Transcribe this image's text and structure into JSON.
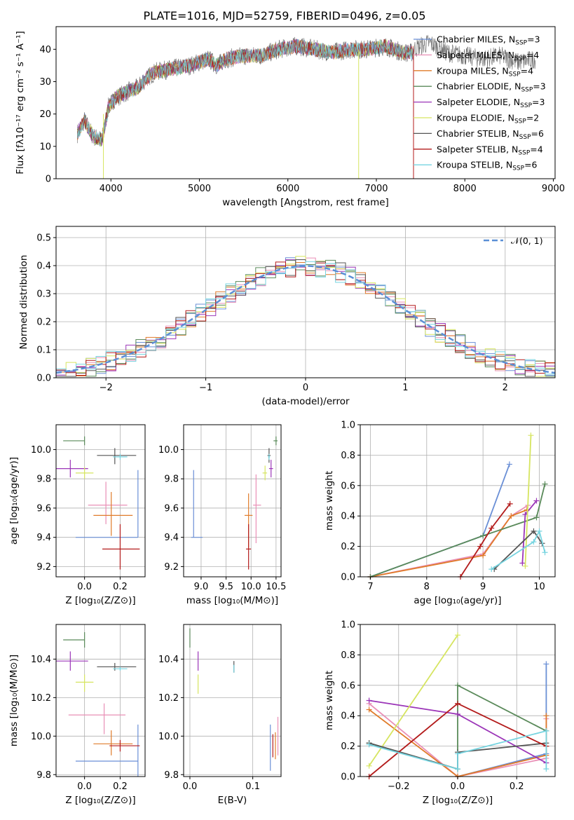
{
  "colors": {
    "chabrier_miles": "#6a8fd6",
    "salpeter_miles": "#e98fb6",
    "kroupa_miles": "#e07b2a",
    "chabrier_elodie": "#5a8a5a",
    "salpeter_elodie": "#9b35b8",
    "kroupa_elodie": "#d6e560",
    "chabrier_stelib": "#555555",
    "salpeter_stelib": "#b31b1b",
    "kroupa_stelib": "#76d4e0",
    "gaussian": "#5b8fd6"
  },
  "chart_data": [
    {
      "id": "spectrum",
      "type": "line",
      "title": "PLATE=1016, MJD=52759, FIBERID=0496, z=0.05",
      "xlabel": "wavelength [Angstrom, rest frame]",
      "ylabel": "Flux [fλ10⁻¹⁷ erg cm⁻² s⁻¹ A⁻¹]",
      "xlim": [
        3380,
        9020
      ],
      "ylim": [
        0,
        47
      ],
      "xticks": [
        "4000",
        "5000",
        "6000",
        "7000",
        "8000",
        "9000"
      ],
      "yticks": [
        "0",
        "10",
        "20",
        "30",
        "40"
      ],
      "legend_position": "upper right",
      "legend": [
        {
          "text": "Chabrier MILES, N_SSP=3",
          "color": "#6a8fd6"
        },
        {
          "text": "Salpeter MILES, N_SSP=4",
          "color": "#e98fb6"
        },
        {
          "text": "Kroupa MILES, N_SSP=4",
          "color": "#e07b2a"
        },
        {
          "text": "Chabrier ELODIE, N_SSP=3",
          "color": "#5a8a5a"
        },
        {
          "text": "Salpeter ELODIE, N_SSP=3",
          "color": "#9b35b8"
        },
        {
          "text": "Kroupa ELODIE, N_SSP=2",
          "color": "#d6e560"
        },
        {
          "text": "Chabrier STELIB, N_SSP=6",
          "color": "#555555"
        },
        {
          "text": "Salpeter STELIB, N_SSP=4",
          "color": "#b31b1b"
        },
        {
          "text": "Kroupa STELIB, N_SSP=6",
          "color": "#76d4e0"
        }
      ],
      "anchor_x": [
        3620,
        3700,
        3800,
        3900,
        3970,
        4050,
        4200,
        4300,
        4400,
        4500,
        4700,
        4900,
        5100,
        5200,
        5300,
        5500,
        5700,
        5900,
        6100,
        6300,
        6500,
        6700,
        6900,
        7100,
        7300,
        7420
      ],
      "anchor_y": [
        14,
        18,
        13,
        12,
        22,
        25,
        27,
        28,
        31,
        33,
        34,
        35,
        37,
        35,
        37,
        38,
        38,
        40,
        41,
        40,
        39,
        40,
        40,
        41,
        39,
        39
      ],
      "tail_x": [
        7420,
        7500,
        7600,
        7800,
        8000,
        8200,
        8400,
        8600,
        8800
      ],
      "tail_y": [
        40,
        41,
        42,
        39,
        38,
        37,
        38,
        36,
        37
      ]
    },
    {
      "id": "residual-histogram",
      "type": "histogram",
      "xlabel": "(data-model)/error",
      "ylabel": "Normed distribution",
      "xlim": [
        -2.5,
        2.5
      ],
      "ylim": [
        0,
        0.54
      ],
      "xticks": [
        "−2",
        "−1",
        "0",
        "1",
        "2"
      ],
      "yticks": [
        "0.0",
        "0.1",
        "0.2",
        "0.3",
        "0.4",
        "0.5"
      ],
      "legend": [
        {
          "text": "𝒩(0, 1)",
          "color": "#5b8fd6"
        }
      ],
      "legend_position": "upper right",
      "bin_width": 0.1,
      "grid": true
    },
    {
      "id": "age-vs-z",
      "type": "errorbar",
      "xlabel": "Z [log₁₀(Z/Z⊙)]",
      "ylabel": "age  [log₁₀(age/yr)]",
      "xlim": [
        -0.16,
        0.34
      ],
      "ylim": [
        9.13,
        10.17
      ],
      "xticks": [
        "0.0",
        "0.2"
      ],
      "yticks": [
        "9.2",
        "9.4",
        "9.6",
        "9.8",
        "10.0"
      ],
      "points": [
        {
          "color": "#6a8fd6",
          "x": 0.3,
          "xerr": [
            0.35,
            0.0
          ],
          "y": 9.4,
          "yerr": [
            0.0,
            0.46
          ]
        },
        {
          "color": "#e98fb6",
          "x": 0.12,
          "xerr": [
            0.1,
            0.12
          ],
          "y": 9.62,
          "yerr": [
            0.13,
            0.16
          ]
        },
        {
          "color": "#e07b2a",
          "x": 0.15,
          "xerr": [
            0.1,
            0.12
          ],
          "y": 9.55,
          "yerr": [
            0.14,
            0.16
          ]
        },
        {
          "color": "#5a8a5a",
          "x": 0.0,
          "xerr": [
            0.12,
            0.0
          ],
          "y": 10.06,
          "yerr": [
            0.03,
            0.03
          ]
        },
        {
          "color": "#9b35b8",
          "x": -0.08,
          "xerr": [
            0.08,
            0.1
          ],
          "y": 9.87,
          "yerr": [
            0.06,
            0.06
          ]
        },
        {
          "color": "#d6e560",
          "x": 0.0,
          "xerr": [
            0.05,
            0.05
          ],
          "y": 9.84,
          "yerr": [
            0.04,
            0.04
          ]
        },
        {
          "color": "#555555",
          "x": 0.17,
          "xerr": [
            0.1,
            0.12
          ],
          "y": 9.96,
          "yerr": [
            0.06,
            0.05
          ]
        },
        {
          "color": "#b31b1b",
          "x": 0.2,
          "xerr": [
            0.1,
            0.11
          ],
          "y": 9.32,
          "yerr": [
            0.14,
            0.17
          ]
        },
        {
          "color": "#76d4e0",
          "x": 0.2,
          "xerr": [
            0.04,
            0.04
          ],
          "y": 9.95,
          "yerr": [
            0.02,
            0.02
          ]
        }
      ]
    },
    {
      "id": "age-vs-mass",
      "type": "errorbar",
      "xlabel": "mass [log₁₀(M/M⊙)]",
      "ylabel": "",
      "xlim": [
        8.65,
        10.6
      ],
      "ylim": [
        9.13,
        10.17
      ],
      "xticks": [
        "9.0",
        "9.5",
        "10.0",
        "10.5"
      ],
      "yticks": [
        "9.2",
        "9.4",
        "9.6",
        "9.8",
        "10.0"
      ],
      "points": [
        {
          "color": "#6a8fd6",
          "x": 8.85,
          "xerr": [
            0.05,
            0.18
          ],
          "y": 9.4,
          "yerr": [
            0.0,
            0.46
          ]
        },
        {
          "color": "#e98fb6",
          "x": 10.1,
          "xerr": [
            0.06,
            0.1
          ],
          "y": 9.62,
          "yerr": [
            0.26,
            0.21
          ]
        },
        {
          "color": "#e07b2a",
          "x": 9.95,
          "xerr": [
            0.08,
            0.08
          ],
          "y": 9.55,
          "yerr": [
            0.22,
            0.15
          ]
        },
        {
          "color": "#5a8a5a",
          "x": 10.5,
          "xerr": [
            0.05,
            0.03
          ],
          "y": 10.06,
          "yerr": [
            0.03,
            0.03
          ]
        },
        {
          "color": "#9b35b8",
          "x": 10.4,
          "xerr": [
            0.04,
            0.04
          ],
          "y": 9.87,
          "yerr": [
            0.06,
            0.06
          ]
        },
        {
          "color": "#d6e560",
          "x": 10.28,
          "xerr": [
            0.05,
            0.04
          ],
          "y": 9.84,
          "yerr": [
            0.05,
            0.05
          ]
        },
        {
          "color": "#555555",
          "x": 10.36,
          "xerr": [
            0.03,
            0.03
          ],
          "y": 9.96,
          "yerr": [
            0.05,
            0.05
          ]
        },
        {
          "color": "#b31b1b",
          "x": 9.95,
          "xerr": [
            0.05,
            0.05
          ],
          "y": 9.32,
          "yerr": [
            0.14,
            0.17
          ]
        },
        {
          "color": "#76d4e0",
          "x": 10.36,
          "xerr": [
            0.02,
            0.02
          ],
          "y": 9.95,
          "yerr": [
            0.02,
            0.02
          ]
        }
      ]
    },
    {
      "id": "mass-weight-vs-age",
      "type": "line",
      "xlabel": "age  [log₁₀(age/yr)]",
      "ylabel": "mass weight",
      "xlim": [
        6.82,
        10.28
      ],
      "ylim": [
        0,
        1.0
      ],
      "xticks": [
        "7",
        "8",
        "9",
        "10"
      ],
      "yticks": [
        "0.0",
        "0.2",
        "0.4",
        "0.6",
        "0.8",
        "1.0"
      ],
      "series": [
        {
          "color": "#6a8fd6",
          "x": [
            7.0,
            9.0,
            9.47
          ],
          "y": [
            0.0,
            0.27,
            0.74
          ]
        },
        {
          "color": "#e98fb6",
          "x": [
            7.0,
            9.0,
            9.5,
            9.8
          ],
          "y": [
            0.0,
            0.15,
            0.4,
            0.47
          ]
        },
        {
          "color": "#e07b2a",
          "x": [
            7.0,
            9.0,
            9.5,
            9.78
          ],
          "y": [
            0.0,
            0.14,
            0.4,
            0.44
          ]
        },
        {
          "color": "#5a8a5a",
          "x": [
            7.0,
            9.0,
            9.95,
            10.1
          ],
          "y": [
            0.0,
            0.27,
            0.39,
            0.61
          ]
        },
        {
          "color": "#9b35b8",
          "x": [
            9.7,
            9.75,
            9.95
          ],
          "y": [
            0.09,
            0.41,
            0.5
          ]
        },
        {
          "color": "#d6e560",
          "x": [
            9.75,
            9.85
          ],
          "y": [
            0.07,
            0.93
          ]
        },
        {
          "color": "#555555",
          "x": [
            9.2,
            9.9,
            10.05
          ],
          "y": [
            0.05,
            0.3,
            0.22
          ]
        },
        {
          "color": "#b31b1b",
          "x": [
            8.6,
            8.95,
            9.15,
            9.48
          ],
          "y": [
            0.0,
            0.2,
            0.32,
            0.48
          ]
        },
        {
          "color": "#76d4e0",
          "x": [
            9.15,
            9.9,
            10.0,
            10.1
          ],
          "y": [
            0.05,
            0.23,
            0.3,
            0.16
          ]
        }
      ]
    },
    {
      "id": "mass-vs-z",
      "type": "errorbar",
      "xlabel": "Z [log₁₀(Z/Z⊙)]",
      "ylabel": "mass [log₁₀(M/M⊙)]",
      "xlim": [
        -0.16,
        0.34
      ],
      "ylim": [
        9.79,
        10.58
      ],
      "xticks": [
        "0.0",
        "0.2"
      ],
      "yticks": [
        "9.8",
        "10.0",
        "10.2",
        "10.4"
      ],
      "points": [
        {
          "color": "#6a8fd6",
          "x": 0.3,
          "xerr": [
            0.35,
            0.0
          ],
          "y": 9.87,
          "yerr": [
            0.08,
            0.19
          ]
        },
        {
          "color": "#e98fb6",
          "x": 0.11,
          "xerr": [
            0.2,
            0.12
          ],
          "y": 10.11,
          "yerr": [
            0.1,
            0.06
          ]
        },
        {
          "color": "#e07b2a",
          "x": 0.15,
          "xerr": [
            0.1,
            0.12
          ],
          "y": 9.96,
          "yerr": [
            0.06,
            0.07
          ]
        },
        {
          "color": "#5a8a5a",
          "x": 0.0,
          "xerr": [
            0.12,
            0.0
          ],
          "y": 10.5,
          "yerr": [
            0.04,
            0.04
          ]
        },
        {
          "color": "#9b35b8",
          "x": -0.08,
          "xerr": [
            0.08,
            0.1
          ],
          "y": 10.39,
          "yerr": [
            0.05,
            0.05
          ]
        },
        {
          "color": "#d6e560",
          "x": 0.0,
          "xerr": [
            0.05,
            0.05
          ],
          "y": 10.28,
          "yerr": [
            0.05,
            0.04
          ]
        },
        {
          "color": "#555555",
          "x": 0.17,
          "xerr": [
            0.1,
            0.12
          ],
          "y": 10.36,
          "yerr": [
            0.02,
            0.02
          ]
        },
        {
          "color": "#b31b1b",
          "x": 0.2,
          "xerr": [
            0.06,
            0.11
          ],
          "y": 9.95,
          "yerr": [
            0.03,
            0.03
          ]
        },
        {
          "color": "#76d4e0",
          "x": 0.2,
          "xerr": [
            0.04,
            0.04
          ],
          "y": 10.35,
          "yerr": [
            0.01,
            0.01
          ]
        }
      ]
    },
    {
      "id": "mass-vs-ebv",
      "type": "errorbar",
      "xlabel": "E(B-V)",
      "ylabel": "",
      "xlim": [
        -0.01,
        0.145
      ],
      "ylim": [
        9.79,
        10.58
      ],
      "xticks": [
        "0.0",
        "0.1"
      ],
      "yticks": [
        "9.8",
        "10.0",
        "10.2",
        "10.4"
      ],
      "points": [
        {
          "color": "#6a8fd6",
          "x": 0.128,
          "xerr": [
            0,
            0
          ],
          "y": 9.94,
          "yerr": [
            0.12,
            0.12
          ]
        },
        {
          "color": "#e98fb6",
          "x": 0.14,
          "xerr": [
            0,
            0
          ],
          "y": 10.0,
          "yerr": [
            0.1,
            0.1
          ]
        },
        {
          "color": "#e07b2a",
          "x": 0.136,
          "xerr": [
            0,
            0
          ],
          "y": 9.95,
          "yerr": [
            0.07,
            0.07
          ]
        },
        {
          "color": "#5a8a5a",
          "x": 0.0,
          "xerr": [
            0,
            0
          ],
          "y": 10.51,
          "yerr": [
            0.05,
            0.05
          ]
        },
        {
          "color": "#9b35b8",
          "x": 0.013,
          "xerr": [
            0,
            0
          ],
          "y": 10.39,
          "yerr": [
            0.05,
            0.05
          ]
        },
        {
          "color": "#d6e560",
          "x": 0.013,
          "xerr": [
            0,
            0
          ],
          "y": 10.27,
          "yerr": [
            0.05,
            0.05
          ]
        },
        {
          "color": "#555555",
          "x": 0.07,
          "xerr": [
            0,
            0
          ],
          "y": 10.36,
          "yerr": [
            0.03,
            0.03
          ]
        },
        {
          "color": "#b31b1b",
          "x": 0.132,
          "xerr": [
            0,
            0
          ],
          "y": 9.95,
          "yerr": [
            0.06,
            0.06
          ]
        },
        {
          "color": "#76d4e0",
          "x": 0.07,
          "xerr": [
            0,
            0
          ],
          "y": 10.35,
          "yerr": [
            0.02,
            0.02
          ]
        }
      ]
    },
    {
      "id": "mass-weight-vs-z",
      "type": "line",
      "xlabel": "Z [log₁₀(Z/Z⊙)]",
      "ylabel": "mass weight",
      "xlim": [
        -0.33,
        0.33
      ],
      "ylim": [
        0,
        1.0
      ],
      "xticks": [
        "−0.2",
        "0.0",
        "0.2"
      ],
      "yticks": [
        "0.0",
        "0.2",
        "0.4",
        "0.6",
        "0.8",
        "1.0"
      ],
      "series": [
        {
          "color": "#6a8fd6",
          "x": [
            0.0,
            0.3,
            0.3
          ],
          "y": [
            0.0,
            0.15,
            0.74
          ]
        },
        {
          "color": "#e98fb6",
          "x": [
            -0.3,
            0.0,
            0.3,
            0.3
          ],
          "y": [
            0.48,
            0.0,
            0.12,
            0.38
          ]
        },
        {
          "color": "#e07b2a",
          "x": [
            -0.3,
            0.0,
            0.3,
            0.3
          ],
          "y": [
            0.44,
            0.0,
            0.14,
            0.4
          ]
        },
        {
          "color": "#5a8a5a",
          "x": [
            -0.3,
            0.0,
            0.0,
            0.3
          ],
          "y": [
            0.22,
            0.05,
            0.6,
            0.3
          ]
        },
        {
          "color": "#9b35b8",
          "x": [
            -0.3,
            0.0,
            0.3
          ],
          "y": [
            0.5,
            0.41,
            0.09
          ]
        },
        {
          "color": "#d6e560",
          "x": [
            -0.3,
            0.0
          ],
          "y": [
            0.07,
            0.93
          ]
        },
        {
          "color": "#555555",
          "x": [
            -0.3,
            0.0,
            0.0,
            0.3
          ],
          "y": [
            0.22,
            0.05,
            0.16,
            0.22
          ]
        },
        {
          "color": "#b31b1b",
          "x": [
            -0.3,
            0.0,
            0.3
          ],
          "y": [
            0.0,
            0.48,
            0.2
          ]
        },
        {
          "color": "#76d4e0",
          "x": [
            -0.3,
            0.0,
            0.0,
            0.3,
            0.3
          ],
          "y": [
            0.21,
            0.05,
            0.15,
            0.3,
            0.05
          ]
        }
      ]
    }
  ]
}
